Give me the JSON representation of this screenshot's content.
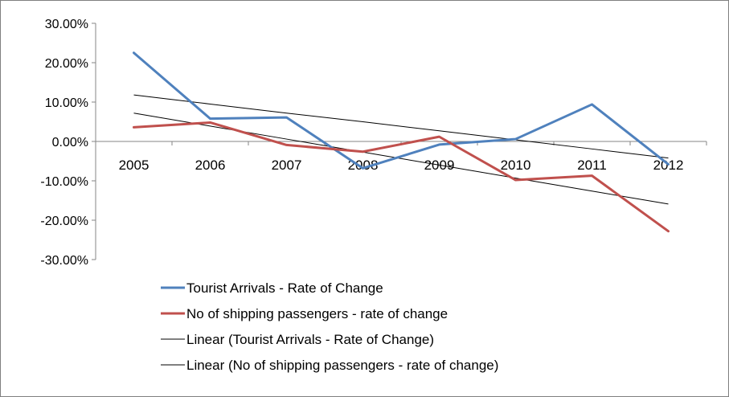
{
  "chart_data": {
    "type": "line",
    "title": "",
    "xlabel": "",
    "ylabel": "",
    "categories": [
      "2005",
      "2006",
      "2007",
      "2008",
      "2009",
      "2010",
      "2011",
      "2012"
    ],
    "y_ticks": [
      "30.00%",
      "20.00%",
      "10.00%",
      "0.00%",
      "-10.00%",
      "-20.00%",
      "-30.00%"
    ],
    "ylim": [
      -30,
      30
    ],
    "grid": false,
    "legend_position": "bottom",
    "series": [
      {
        "name": "Tourist Arrivals - Rate of Change",
        "color": "#4f81bd",
        "values": [
          22.5,
          5.8,
          6.1,
          -6.8,
          -0.8,
          0.6,
          9.4,
          -5.8
        ]
      },
      {
        "name": "No of shipping passengers - rate of change",
        "color": "#c0504d",
        "values": [
          3.6,
          4.8,
          -0.9,
          -2.6,
          1.2,
          -9.8,
          -8.7,
          -22.8
        ]
      }
    ],
    "trendlines": [
      {
        "name": "Linear (Tourist Arrivals - Rate of Change)",
        "color": "#000000",
        "type": "linear",
        "values": [
          11.8,
          9.5,
          7.2,
          5.0,
          2.7,
          0.4,
          -1.9,
          -4.2
        ]
      },
      {
        "name": "Linear (No of shipping passengers - rate of change)",
        "color": "#000000",
        "type": "linear",
        "values": [
          7.2,
          3.9,
          0.6,
          -2.7,
          -6.0,
          -9.3,
          -12.6,
          -15.9
        ]
      }
    ]
  }
}
